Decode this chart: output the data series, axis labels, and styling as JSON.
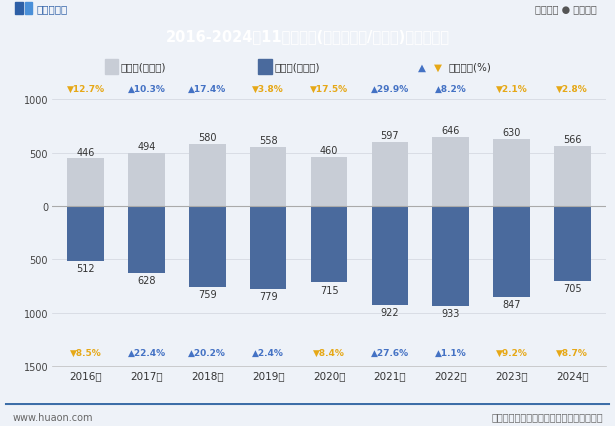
{
  "title": "2016-2024年11月辽宁省(境内目的地/货源地)进、出口额",
  "header_bg": "#4a6fa5",
  "header_text_color": "#ffffff",
  "bg_color": "#eef2f8",
  "years": [
    "2016年",
    "2017年",
    "2018年",
    "2019年",
    "2020年",
    "2021年",
    "2022年",
    "2023年",
    "2024年"
  ],
  "export_values": [
    446,
    494,
    580,
    558,
    460,
    597,
    646,
    630,
    566
  ],
  "import_values": [
    512,
    628,
    759,
    779,
    715,
    922,
    933,
    847,
    705
  ],
  "export_growth": [
    -12.7,
    10.3,
    17.4,
    -3.8,
    -17.5,
    29.9,
    8.2,
    -2.1,
    -2.8
  ],
  "import_growth": [
    -8.5,
    22.4,
    20.2,
    2.4,
    -8.4,
    27.6,
    1.1,
    -9.2,
    -8.7
  ],
  "export_color": "#c8cdd6",
  "import_color": "#4a6a9d",
  "up_color": "#4472c4",
  "down_color": "#e6a817",
  "legend_export": "出口额(亿美元)",
  "legend_import": "进口额(亿美元)",
  "legend_growth": "同比增长(%)",
  "footer_left": "www.huaon.com",
  "footer_right": "数据来源：中国海关；华经产业研究院整理",
  "logo_left": "华经情报网",
  "logo_right": "专业严谨 ● 客观科学",
  "watermark": "华经产业研究院"
}
